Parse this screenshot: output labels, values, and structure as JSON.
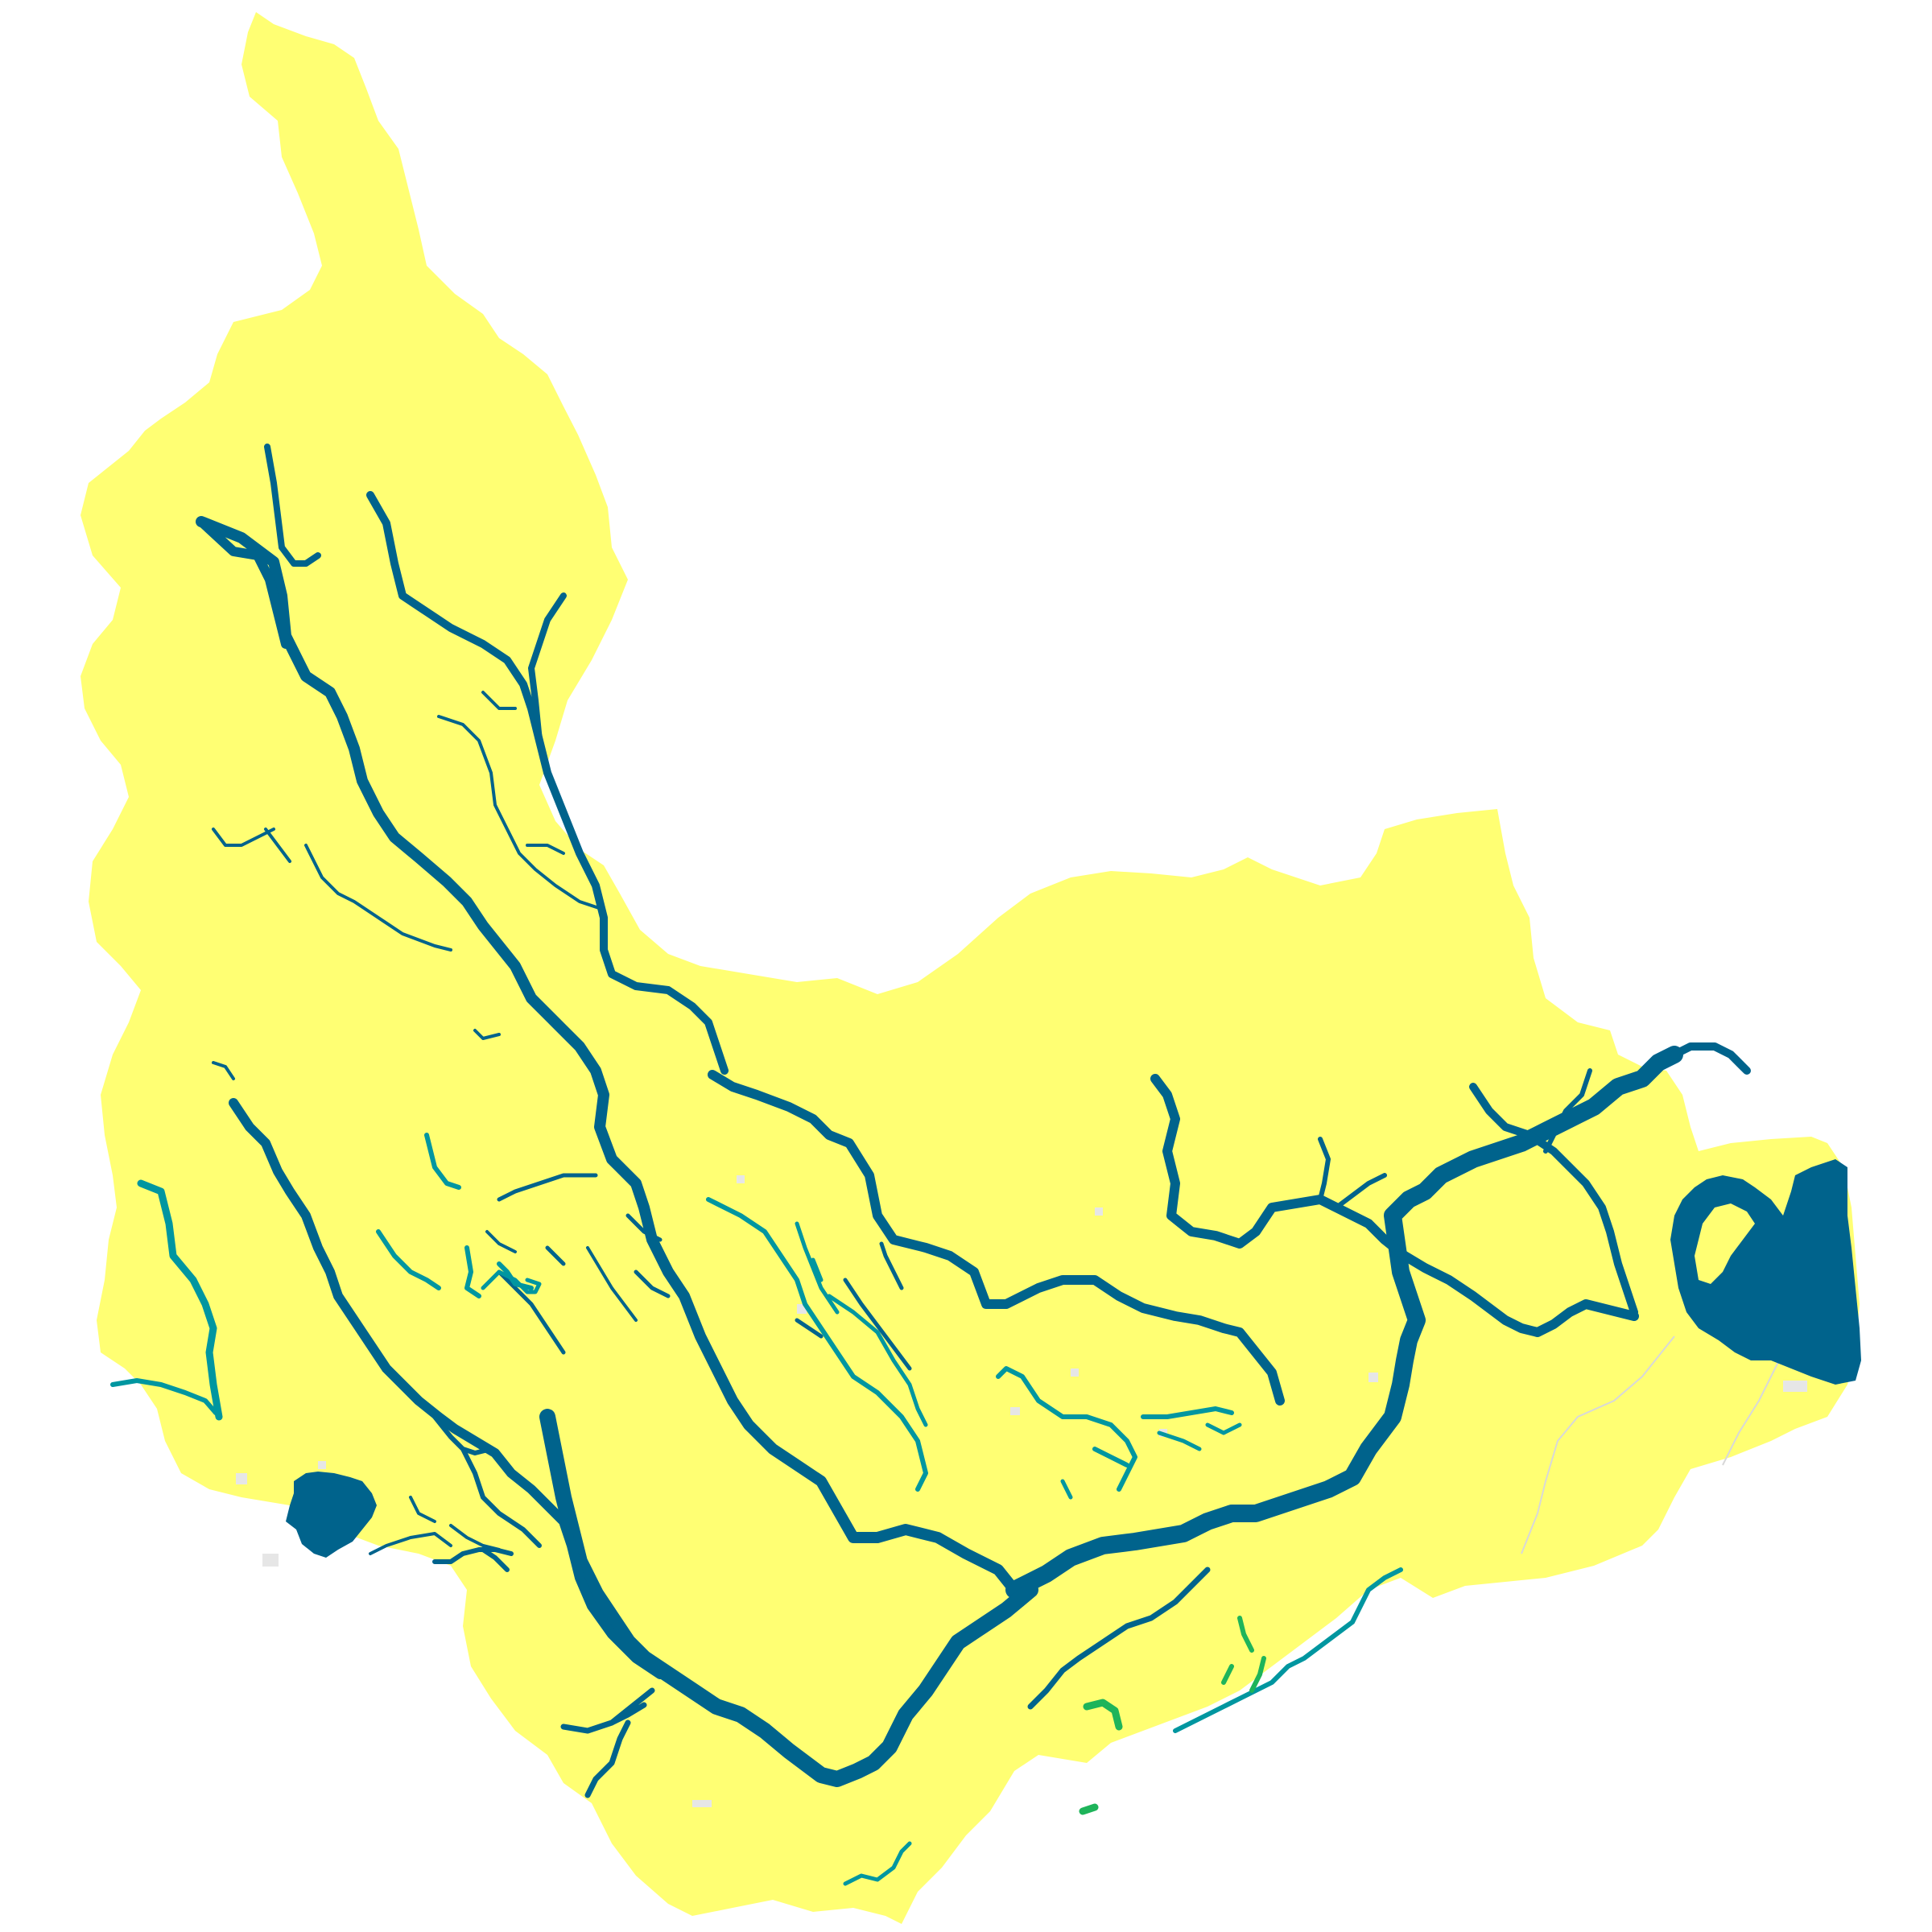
{
  "map": {
    "colors": {
      "background": "#ffffff",
      "basin_fill": "#ffff73",
      "major_river": "#00638c",
      "teal_river": "#0096a0",
      "green_river": "#1eb45a",
      "mixed_river": "#00809a",
      "lake": "#00638c",
      "estuary": "#00638c",
      "small_patch": "#e6e6e6",
      "boundary_line": "#d8d8d8"
    },
    "legend": [],
    "labels": []
  }
}
